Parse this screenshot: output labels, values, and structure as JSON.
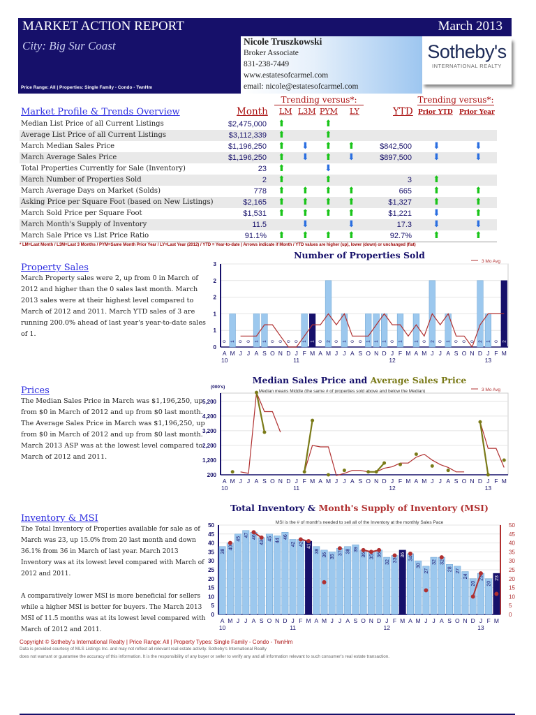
{
  "header": {
    "title": "MARKET ACTION REPORT",
    "date": "March 2013",
    "city": "City: Big Sur Coast",
    "price_range": "Price Range: All | Properties: Single Family - Condo - TwnHm"
  },
  "agent": {
    "name": "Nicole Truszkowski",
    "role": "Broker Associate",
    "phone": "831-238-7449",
    "website": "www.estatesofcarmel.com",
    "email": "email: nicole@estatesofcarmel.com"
  },
  "logo": {
    "name": "Sotheby's",
    "sub": "INTERNATIONAL REALTY"
  },
  "overview": {
    "title": "Market Profile & Trends Overview",
    "trending_label": "Trending versus*:",
    "col_month": "Month",
    "col_lm": "LM",
    "col_l3m": "L3M",
    "col_pym": "PYM",
    "col_ly": "LY",
    "col_ytd": "YTD",
    "col_prior_ytd": "Prior YTD",
    "col_prior_year": "Prior Year",
    "rows": [
      {
        "label": "Median List Price of all Current Listings",
        "month": "$2,475,000",
        "lm": "up",
        "l3m": "",
        "pym": "up",
        "ly": "",
        "ytd": "",
        "prior_ytd": "",
        "prior_year": ""
      },
      {
        "label": "Average List Price of all Current Listings",
        "month": "$3,112,339",
        "lm": "up",
        "l3m": "",
        "pym": "up",
        "ly": "",
        "ytd": "",
        "prior_ytd": "",
        "prior_year": ""
      },
      {
        "label": "March Median Sales Price",
        "month": "$1,196,250",
        "lm": "up",
        "l3m": "down",
        "pym": "up",
        "ly": "up",
        "ytd": "$842,500",
        "prior_ytd": "down",
        "prior_year": "down"
      },
      {
        "label": "March Average Sales Price",
        "month": "$1,196,250",
        "lm": "up",
        "l3m": "down",
        "pym": "up",
        "ly": "down",
        "ytd": "$897,500",
        "prior_ytd": "down",
        "prior_year": "down"
      },
      {
        "label": "Total Properties Currently for Sale (Inventory)",
        "month": "23",
        "lm": "up",
        "l3m": "",
        "pym": "down",
        "ly": "",
        "ytd": "",
        "prior_ytd": "",
        "prior_year": ""
      },
      {
        "label": "March Number of Properties Sold",
        "month": "2",
        "lm": "up",
        "l3m": "",
        "pym": "up",
        "ly": "",
        "ytd": "3",
        "prior_ytd": "up",
        "prior_year": ""
      },
      {
        "label": "March Average Days on Market (Solds)",
        "month": "778",
        "lm": "up",
        "l3m": "up",
        "pym": "up",
        "ly": "up",
        "ytd": "665",
        "prior_ytd": "up",
        "prior_year": "up"
      },
      {
        "label": "Asking Price per Square Foot (based on New Listings)",
        "month": "$2,165",
        "lm": "up",
        "l3m": "up",
        "pym": "up",
        "ly": "up",
        "ytd": "$1,327",
        "prior_ytd": "up",
        "prior_year": "up"
      },
      {
        "label": "March Sold Price per Square Foot",
        "month": "$1,531",
        "lm": "up",
        "l3m": "up",
        "pym": "up",
        "ly": "up",
        "ytd": "$1,221",
        "prior_ytd": "down",
        "prior_year": "up"
      },
      {
        "label": "March Month's Supply of Inventory",
        "month": "11.5",
        "lm": "",
        "l3m": "down",
        "pym": "",
        "ly": "down",
        "ytd": "17.3",
        "prior_ytd": "down",
        "prior_year": "down"
      },
      {
        "label": "March Sale Price vs List Price Ratio",
        "month": "91.1%",
        "lm": "up",
        "l3m": "up",
        "pym": "up",
        "ly": "up",
        "ytd": "92.7%",
        "prior_ytd": "up",
        "prior_year": "up"
      }
    ],
    "footnote": "* LM=Last Month / L3M=Last 3 Months / PYM=Same Month Prior Year / LY=Last Year (2012) / YTD = Year-to-date | Arrows indicate if Month / YTD values are higher (up), lower (down) or unchanged (flat)"
  },
  "sections": {
    "sales": {
      "title": "Property Sales",
      "text": "March Property sales were 2, up from 0 in March of 2012 and higher than the 0 sales last month. March 2013 sales were at their highest level compared to March of 2012 and 2011. March YTD sales of 3 are running 200.0% ahead of last year's year-to-date sales of 1."
    },
    "prices": {
      "title": "Prices",
      "text": "The Median Sales Price in March was $1,196,250, up from $0 in March of 2012 and up from $0 last month. The Average Sales Price in March was $1,196,250, up from $0 in March of 2012 and up from $0 last month. March 2013 ASP was at the lowest level compared to March of 2012 and 2011."
    },
    "inventory": {
      "title": "Inventory & MSI",
      "text1": "The Total Inventory of Properties available for sale as of March was 23, up 15.0% from 20 last month and down 36.1% from 36 in March of last year. March 2013 Inventory was at its lowest level compared with March of 2012 and 2011.",
      "text2": "A comparatively lower MSI is more beneficial for sellers while a higher MSI is better for buyers. The March 2013 MSI of 11.5 months was at its lowest level compared with March of 2012 and 2011."
    }
  },
  "footer": {
    "copyright": "Copyright © Sotheby's International Realty | Price Range: All | Property Types: Single Family - Condo - TwnHm",
    "disclaimer1": "Data is provided courtesy of MLS Listings Inc. and may not reflect all relevant real estate activity. Sotheby's International Realty",
    "disclaimer2": "does not warrant or guarantee the accuracy of this information. It is the responsibility of any buyer or seller to verify any and all information relevant to such consumer's real estate transaction."
  },
  "colors": {
    "navy": "#16106a",
    "bar": "#9cc8ee",
    "bar_current": "#16106a",
    "avg_line": "#b03030",
    "avg_price": "#7a7a18",
    "up": "#19c419",
    "down": "#2a6ee0"
  },
  "chart_data": [
    {
      "type": "bar",
      "title": "Number of Properties Sold",
      "legend": "3 Mo Avg",
      "legend_position": "top-right",
      "months": [
        "A",
        "M",
        "J",
        "J",
        "A",
        "S",
        "O",
        "N",
        "D",
        "J",
        "F",
        "M",
        "A",
        "M",
        "J",
        "J",
        "A",
        "S",
        "O",
        "N",
        "D",
        "J",
        "F",
        "M",
        "A",
        "M",
        "J",
        "J",
        "A",
        "S",
        "O",
        "N",
        "D",
        "J",
        "F",
        "M"
      ],
      "years": [
        {
          "label": "10",
          "index": 0
        },
        {
          "label": "11",
          "index": 9
        },
        {
          "label": "12",
          "index": 21
        },
        {
          "label": "13",
          "index": 33
        }
      ],
      "yticks": [
        "0",
        "1",
        "1",
        "2",
        "2",
        "3"
      ],
      "ylim": [
        0,
        2.5
      ],
      "values": [
        0,
        1,
        0,
        0,
        1,
        1,
        0,
        0,
        0,
        0,
        1,
        1,
        0,
        2,
        0,
        1,
        0,
        0,
        1,
        1,
        1,
        0,
        1,
        0,
        1,
        0,
        2,
        0,
        1,
        0,
        0,
        0,
        2,
        1,
        0,
        2
      ],
      "highlight": [
        11,
        23,
        35
      ],
      "avg": [
        null,
        null,
        0.33,
        0.33,
        0.33,
        0.67,
        0.67,
        0.33,
        0,
        0,
        0.33,
        0.67,
        0.67,
        1,
        0.67,
        1,
        0.33,
        0.33,
        0.33,
        0.67,
        1,
        0.67,
        0.67,
        0.33,
        0.67,
        0.33,
        1,
        0.67,
        1,
        0.33,
        0.33,
        0,
        0.67,
        1,
        1,
        1
      ]
    },
    {
      "type": "line",
      "title_a": "Median Sales Price",
      "title_join": " and ",
      "title_b": "Average Sales Price",
      "subtitle": "Median means Middle (the same # of properties sold above and below the Median)",
      "ylabel": "(000's)",
      "legend": "3 Mo Avg",
      "yticks": [
        200,
        1200,
        2200,
        3200,
        4200,
        5200
      ],
      "ylim": [
        200,
        5760
      ],
      "average": [
        null,
        400,
        null,
        null,
        5800,
        3100,
        null,
        null,
        null,
        null,
        400,
        3900,
        null,
        200,
        null,
        500,
        null,
        null,
        400,
        400,
        1000,
        null,
        900,
        null,
        1600,
        null,
        800,
        null,
        500,
        null,
        null,
        null,
        3800,
        200,
        null,
        1196
      ],
      "avg3": [
        null,
        null,
        400,
        300,
        5800,
        4500,
        4500,
        3100,
        null,
        null,
        400,
        2200,
        2100,
        2100,
        150,
        300,
        500,
        500,
        400,
        400,
        650,
        750,
        1000,
        1000,
        1400,
        1600,
        1200,
        900,
        700,
        400,
        400,
        null,
        3800,
        2000,
        2000,
        700
      ]
    },
    {
      "type": "bar",
      "title_a": "Total Inventory",
      "title_join": " & ",
      "title_b": "Month's Supply of Inventory (MSI)",
      "subtitle": "MSI is the # of month's needed to sell all of the Inventory at the monthly Sales Pace",
      "yticks": [
        0,
        5,
        10,
        15,
        20,
        25,
        30,
        35,
        40,
        45,
        50
      ],
      "ylim": [
        0,
        50
      ],
      "inventory": [
        38,
        40,
        45,
        47,
        46,
        43,
        45,
        44,
        46,
        42,
        42,
        41,
        38,
        36,
        35,
        37,
        38,
        39,
        36,
        35,
        36,
        32,
        33,
        36,
        34,
        30,
        27,
        32,
        32,
        28,
        27,
        24,
        20,
        23,
        20,
        23
      ],
      "msi": [
        null,
        40,
        null,
        null,
        46,
        43,
        null,
        null,
        null,
        null,
        42,
        41,
        null,
        18,
        null,
        37,
        null,
        null,
        36,
        35,
        36,
        null,
        33,
        null,
        34,
        null,
        13.5,
        null,
        32,
        null,
        null,
        null,
        10,
        23,
        null,
        11.5
      ]
    }
  ]
}
